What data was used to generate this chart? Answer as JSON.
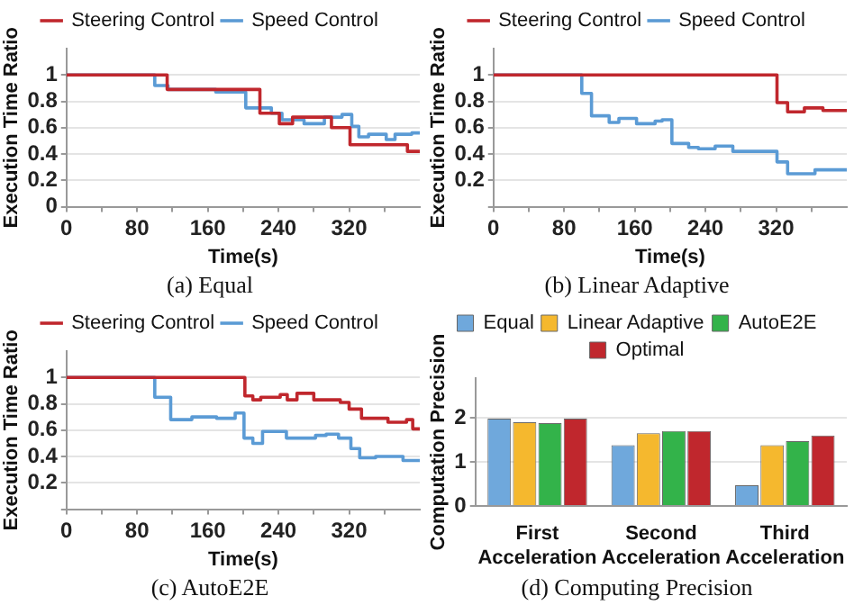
{
  "chart_data": [
    {
      "type": "step",
      "title": "(a) Equal",
      "xlabel": "Time(s)",
      "ylabel": "Execution Time Ratio",
      "xlim": [
        0,
        400
      ],
      "ylim": [
        0,
        1.2
      ],
      "xticks": [
        0,
        {
          "value": 40,
          "label": null
        },
        80,
        {
          "value": 120,
          "label": null
        },
        160,
        {
          "value": 200,
          "label": null
        },
        240,
        {
          "value": 280,
          "label": null
        },
        320,
        {
          "value": 360,
          "label": null
        }
      ],
      "yticks": [
        0,
        0.2,
        0.4,
        0.6,
        0.8,
        1
      ],
      "grid": "y",
      "legend": "top",
      "marker": "none",
      "line_style": "solid",
      "series": [
        {
          "name": "Steering Control",
          "color": "#c0272d",
          "x": [
            0,
            114,
            219,
            241,
            256,
            300,
            321,
            386,
            400
          ],
          "values": [
            1,
            0.89,
            0.71,
            0.63,
            0.68,
            0.6,
            0.47,
            0.42,
            0.42
          ]
        },
        {
          "name": "Speed Control",
          "color": "#5b9bd5",
          "x": [
            0,
            100,
            115,
            169,
            203,
            232,
            244,
            269,
            292,
            312,
            323,
            331,
            342,
            362,
            372,
            391,
            400
          ],
          "values": [
            1,
            0.92,
            0.89,
            0.87,
            0.75,
            0.71,
            0.66,
            0.63,
            0.68,
            0.7,
            0.61,
            0.53,
            0.55,
            0.51,
            0.55,
            0.56,
            0.56
          ]
        }
      ]
    },
    {
      "type": "step",
      "title": "(b) Linear Adaptive",
      "xlabel": "Time(s)",
      "ylabel": "Execution Time Ratio",
      "xlim": [
        0,
        400
      ],
      "ylim": [
        0,
        1.2
      ],
      "xticks": [
        0,
        {
          "value": 40,
          "label": null
        },
        80,
        {
          "value": 120,
          "label": null
        },
        160,
        {
          "value": 200,
          "label": null
        },
        240,
        {
          "value": 280,
          "label": null
        },
        320,
        {
          "value": 360,
          "label": null
        }
      ],
      "yticks": [
        {
          "value": 0,
          "label": null
        },
        0.2,
        0.4,
        0.6,
        0.8,
        1
      ],
      "grid": "y",
      "legend": "top",
      "marker": "none",
      "line_style": "solid",
      "series": [
        {
          "name": "Steering Control",
          "color": "#c0272d",
          "x": [
            0,
            321,
            333,
            352,
            373,
            400
          ],
          "values": [
            1,
            0.79,
            0.72,
            0.75,
            0.73,
            0.73
          ]
        },
        {
          "name": "Speed Control",
          "color": "#5b9bd5",
          "x": [
            0,
            100,
            111,
            131,
            142,
            162,
            183,
            191,
            202,
            221,
            232,
            251,
            271,
            321,
            333,
            364,
            400
          ],
          "values": [
            1,
            0.86,
            0.69,
            0.64,
            0.67,
            0.63,
            0.65,
            0.66,
            0.48,
            0.45,
            0.44,
            0.46,
            0.42,
            0.34,
            0.25,
            0.28,
            0.28
          ]
        }
      ]
    },
    {
      "type": "step",
      "title": "(c) AutoE2E",
      "xlabel": "Time(s)",
      "ylabel": "Execution Time Ratio",
      "xlim": [
        0,
        400
      ],
      "ylim": [
        0,
        1.2
      ],
      "xticks": [
        0,
        {
          "value": 40,
          "label": null
        },
        80,
        {
          "value": 120,
          "label": null
        },
        160,
        {
          "value": 200,
          "label": null
        },
        240,
        {
          "value": 280,
          "label": null
        },
        320,
        {
          "value": 360,
          "label": null
        }
      ],
      "yticks": [
        {
          "value": 0,
          "label": null
        },
        0.2,
        0.4,
        0.6,
        0.8,
        1
      ],
      "grid": "y",
      "legend": "top",
      "marker": "none",
      "line_style": "solid",
      "series": [
        {
          "name": "Steering Control",
          "color": "#c0272d",
          "x": [
            0,
            202,
            211,
            220,
            242,
            250,
            261,
            280,
            310,
            320,
            334,
            364,
            385,
            392,
            400
          ],
          "values": [
            1,
            0.86,
            0.83,
            0.85,
            0.87,
            0.83,
            0.88,
            0.83,
            0.81,
            0.76,
            0.69,
            0.66,
            0.68,
            0.61,
            0.61
          ]
        },
        {
          "name": "Speed Control",
          "color": "#5b9bd5",
          "x": [
            0,
            100,
            118,
            142,
            170,
            191,
            201,
            211,
            222,
            249,
            282,
            294,
            308,
            322,
            332,
            350,
            381,
            400
          ],
          "values": [
            1,
            0.85,
            0.68,
            0.7,
            0.69,
            0.73,
            0.54,
            0.5,
            0.59,
            0.54,
            0.56,
            0.57,
            0.54,
            0.46,
            0.39,
            0.4,
            0.37,
            0.37
          ]
        }
      ]
    },
    {
      "type": "bar",
      "title": "(d) Computing Precision",
      "ylabel": "Computation Precision",
      "categories": [
        "First Acceleration",
        "Second Acceleration",
        "Third Acceleration"
      ],
      "ylim": [
        0,
        2.9
      ],
      "yticks": [
        0,
        1,
        2
      ],
      "grid": "y",
      "legend": "top",
      "series": [
        {
          "name": "Equal",
          "color": "#6fa8dc",
          "values": [
            1.98,
            1.38,
            0.47
          ]
        },
        {
          "name": "Linear Adaptive",
          "color": "#f5b82e",
          "values": [
            1.9,
            1.65,
            1.38
          ]
        },
        {
          "name": "AutoE2E",
          "color": "#33b34a",
          "values": [
            1.88,
            1.7,
            1.47
          ]
        },
        {
          "name": "Optimal",
          "color": "#c0272d",
          "values": [
            1.98,
            1.7,
            1.6
          ]
        }
      ]
    }
  ]
}
